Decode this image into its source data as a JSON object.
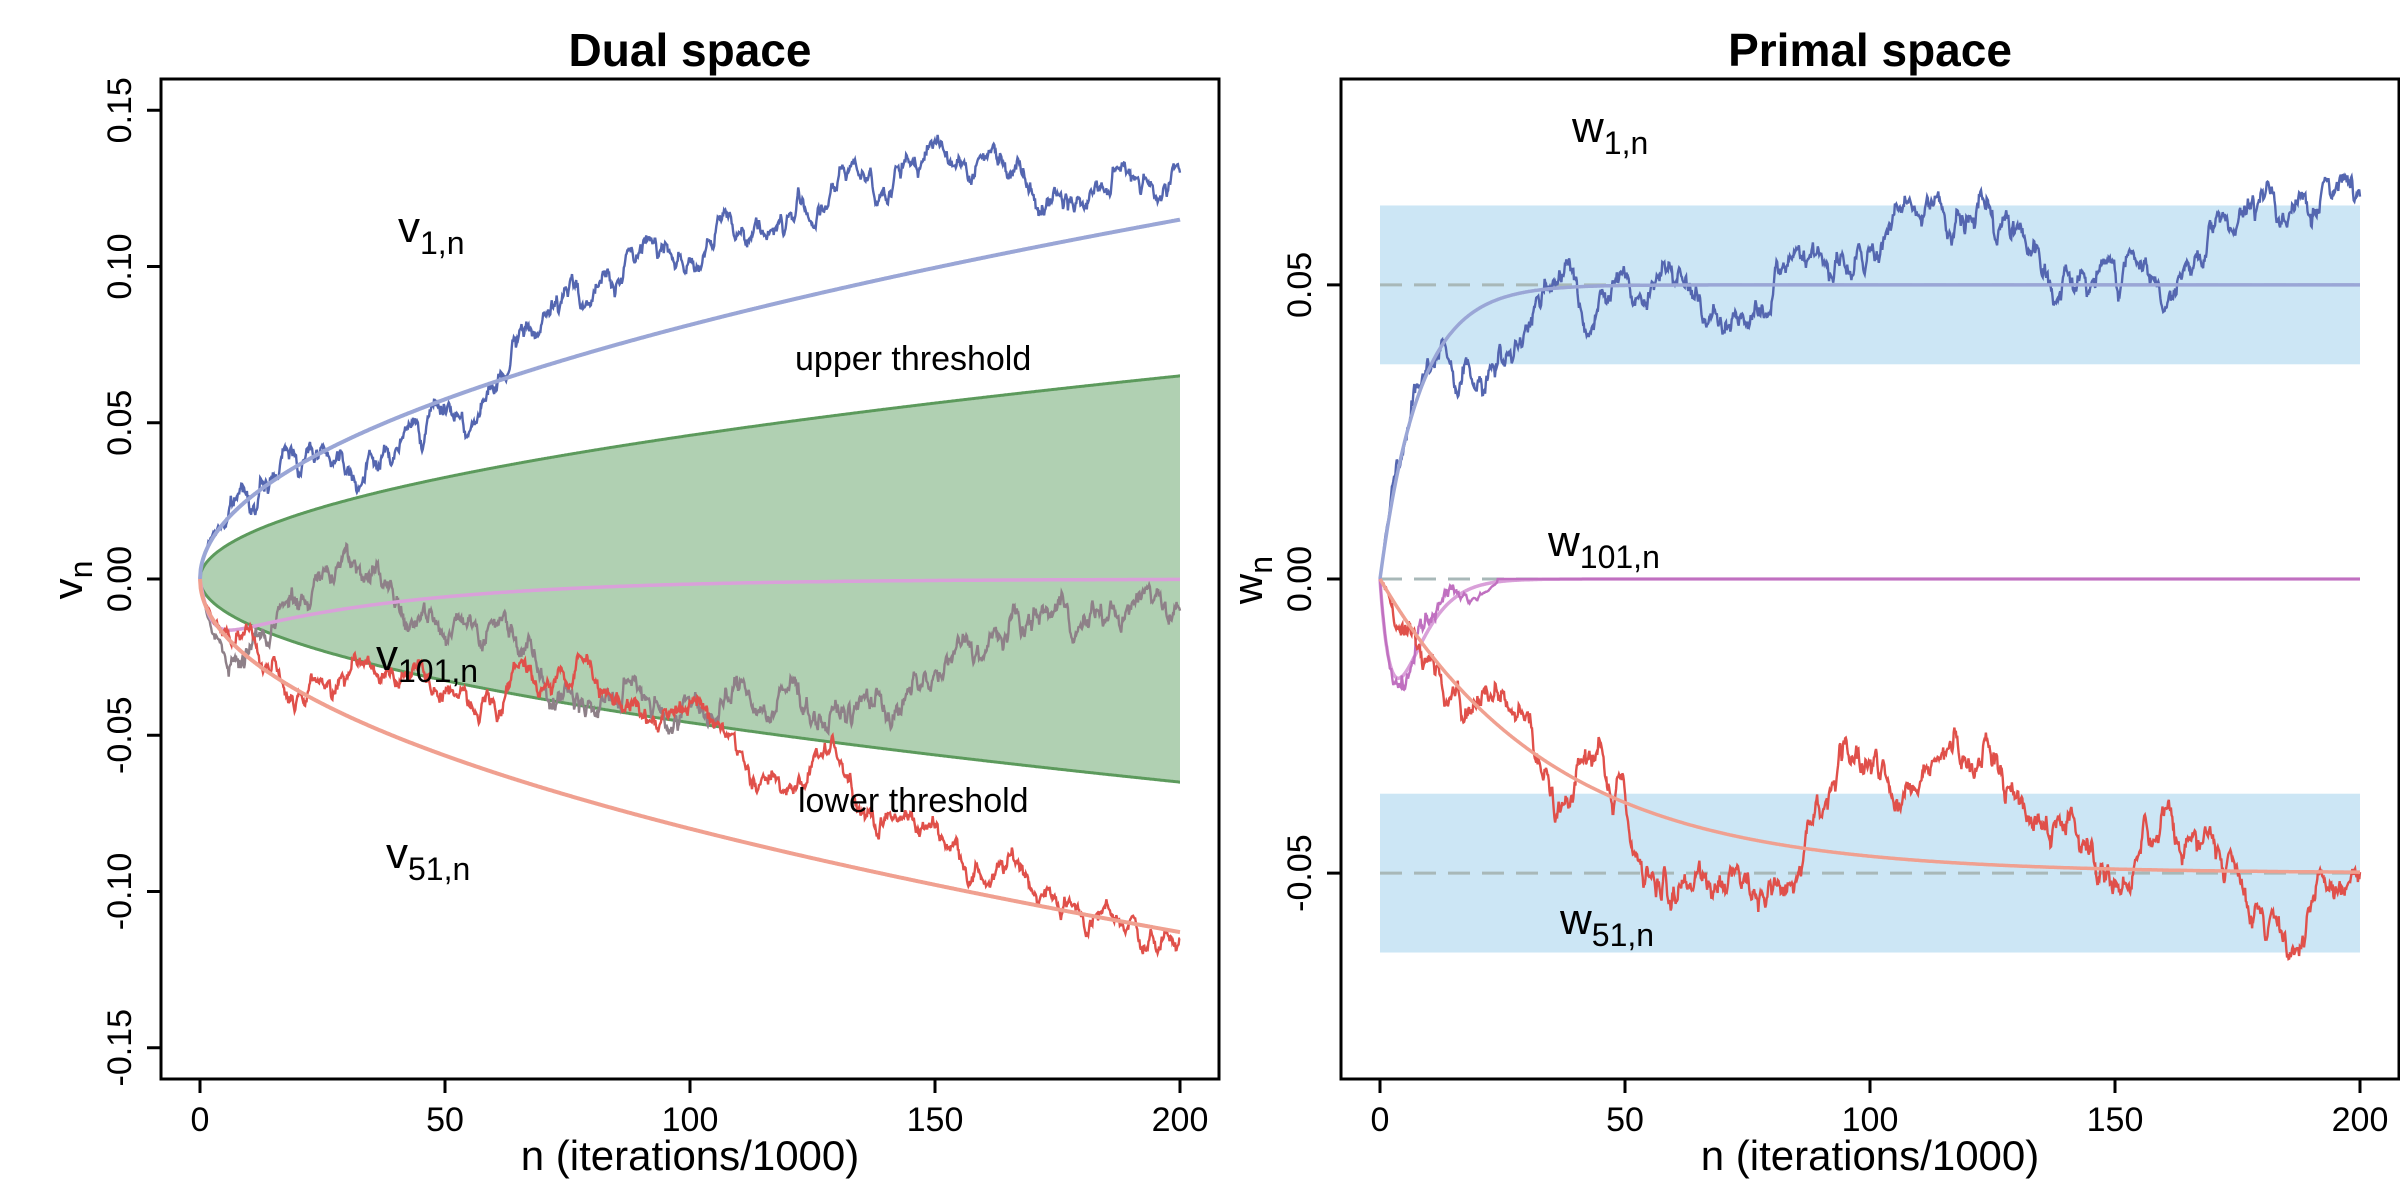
{
  "colors": {
    "series_1": "#5466b0",
    "series_1_trend": "#9aa6d6",
    "series_51": "#e0504a",
    "series_51_trend": "#f0a090",
    "series_101": "#c070c0",
    "series_101_trend": "#d9a0d9",
    "series_101_noise": "#8e8088",
    "band_fill": "#b0d0b2",
    "band_edge": "#5c9a5c",
    "primal_band": "#cce6f5",
    "dashed_ref": "#a8b8b8"
  },
  "chart_data": [
    {
      "type": "line",
      "title": "Dual space",
      "xlabel": "n (iterations/1000)",
      "ylabel": {
        "main": "v",
        "sub": "n"
      },
      "xlim": [
        0,
        200
      ],
      "ylim": [
        -0.16,
        0.16
      ],
      "xticks": [
        0,
        50,
        100,
        150,
        200
      ],
      "xtick_labels": [
        "0",
        "50",
        "100",
        "150",
        "200"
      ],
      "yticks": [
        -0.15,
        -0.1,
        -0.05,
        0,
        0.05,
        0.1,
        0.15
      ],
      "ytick_labels": [
        "-0.15",
        "-0.10",
        "-0.05",
        "0.00",
        "0.05",
        "0.10",
        "0.15"
      ],
      "grid": false,
      "series": [
        {
          "name": "v_{1,n}",
          "label_main": "v",
          "label_sub": "1,n",
          "trend_end": 0.115,
          "final": 0.13
        },
        {
          "name": "v_{51,n}",
          "label_main": "v",
          "label_sub": "51,n",
          "trend_end": -0.113,
          "final": -0.115
        },
        {
          "name": "v_{101,n}",
          "label_main": "v",
          "label_sub": "101,n",
          "trend_end": 0.0,
          "final": -0.01
        }
      ],
      "threshold_band": {
        "upper_end": 0.065,
        "lower_end": -0.065
      },
      "annotations": [
        "upper threshold",
        "lower threshold"
      ]
    },
    {
      "type": "line",
      "title": "Primal space",
      "xlabel": "n (iterations/1000)",
      "ylabel": {
        "main": "w",
        "sub": "n"
      },
      "xlim": [
        0,
        200
      ],
      "ylim": [
        -0.085,
        0.085
      ],
      "xticks": [
        0,
        50,
        100,
        150,
        200
      ],
      "xtick_labels": [
        "0",
        "50",
        "100",
        "150",
        "200"
      ],
      "yticks": [
        -0.05,
        0,
        0.05
      ],
      "ytick_labels": [
        "-0.05",
        "0.00",
        "0.05"
      ],
      "grid": false,
      "series": [
        {
          "name": "w_{1,n}",
          "label_main": "w",
          "label_sub": "1,n",
          "target": 0.05,
          "final": 0.065
        },
        {
          "name": "w_{101,n}",
          "label_main": "w",
          "label_sub": "101,n",
          "target": 0.0,
          "final": 0.0
        },
        {
          "name": "w_{51,n}",
          "label_main": "w",
          "label_sub": "51,n",
          "target": -0.05,
          "final": -0.05
        }
      ],
      "shaded_bands": [
        [
          0.0365,
          0.0635
        ],
        [
          -0.0635,
          -0.0365
        ]
      ],
      "reference_lines": [
        0.05,
        0.0,
        -0.05
      ]
    }
  ]
}
